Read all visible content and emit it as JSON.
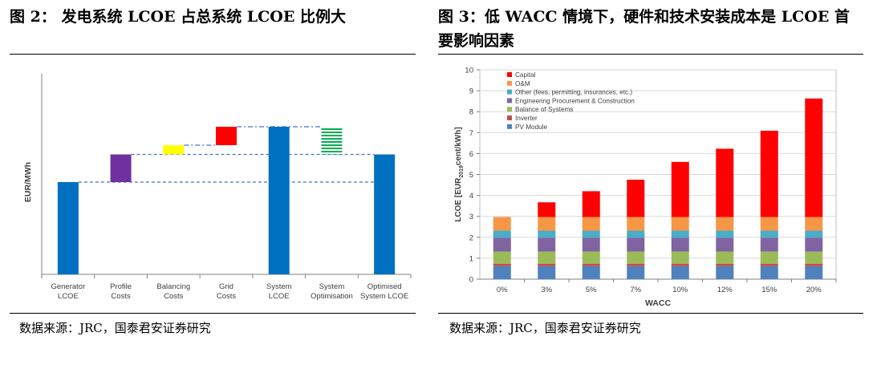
{
  "figures": [
    {
      "title": "图 2：  发电系统 LCOE 占总系统 LCOE 比例大",
      "source": "数据来源：JRC，国泰君安证券研究"
    },
    {
      "title": "图 3：低 WACC 情境下，硬件和技术安装成本是 LCOE 首要影响因素",
      "source": "数据来源：JRC，国泰君安证券研究"
    }
  ],
  "chart_data": [
    {
      "type": "bar",
      "subtype": "waterfall",
      "ylabel": "EUR/MWh",
      "categories": [
        "Generator\nLCOE",
        "Profile\nCosts",
        "Balancing\nCosts",
        "Grid\nCosts",
        "System\nLCOE",
        "System\nOptimisation",
        "Optimised\nSystem LCOE"
      ],
      "ylim": [
        0,
        100
      ],
      "bars": [
        {
          "category": "Generator LCOE",
          "start": 0,
          "end": 50,
          "color": "#0070c0",
          "fill": "solid"
        },
        {
          "category": "Profile Costs",
          "start": 50,
          "end": 65,
          "color": "#7030a0",
          "fill": "solid"
        },
        {
          "category": "Balancing Costs",
          "start": 65,
          "end": 70,
          "color": "#ffff00",
          "fill": "solid"
        },
        {
          "category": "Grid Costs",
          "start": 70,
          "end": 80,
          "color": "#ff0000",
          "fill": "solid"
        },
        {
          "category": "System LCOE",
          "start": 0,
          "end": 80,
          "color": "#0070c0",
          "fill": "solid"
        },
        {
          "category": "System Optimisation",
          "start": 65,
          "end": 80,
          "color": "#00b050",
          "fill": "striped"
        },
        {
          "category": "Optimised System LCOE",
          "start": 0,
          "end": 65,
          "color": "#0070c0",
          "fill": "solid"
        }
      ],
      "grid": false
    },
    {
      "type": "bar",
      "subtype": "stacked",
      "xlabel": "WACC",
      "ylabel": "LCOE [EUR2019cent/kWh]",
      "ylabel_main": "LCOE [EUR",
      "ylabel_sub": "2019",
      "ylabel_tail": "cent/kWh]",
      "categories": [
        "0%",
        "3%",
        "5%",
        "7%",
        "10%",
        "12%",
        "15%",
        "20%"
      ],
      "ylim": [
        0,
        10
      ],
      "yticks": [
        0,
        1,
        2,
        3,
        4,
        5,
        6,
        7,
        8,
        9,
        10
      ],
      "grid": true,
      "legend_position": "top-left",
      "series": [
        {
          "name": "PV Module",
          "color": "#4f81bd",
          "values": [
            0.62,
            0.62,
            0.62,
            0.62,
            0.62,
            0.62,
            0.62,
            0.62
          ]
        },
        {
          "name": "Inverter",
          "color": "#c0504d",
          "values": [
            0.12,
            0.12,
            0.12,
            0.12,
            0.12,
            0.12,
            0.12,
            0.12
          ]
        },
        {
          "name": "Balance of Systems",
          "color": "#9bbb59",
          "values": [
            0.58,
            0.58,
            0.58,
            0.58,
            0.58,
            0.58,
            0.58,
            0.58
          ]
        },
        {
          "name": "Engineering Procurement & Construction",
          "color": "#8064a2",
          "values": [
            0.66,
            0.66,
            0.66,
            0.66,
            0.66,
            0.66,
            0.66,
            0.66
          ]
        },
        {
          "name": "Other (fees, permitting, insurances, etc.)",
          "color": "#4bacc6",
          "values": [
            0.34,
            0.34,
            0.34,
            0.34,
            0.34,
            0.34,
            0.34,
            0.34
          ]
        },
        {
          "name": "O&M",
          "color": "#f79646",
          "values": [
            0.65,
            0.65,
            0.65,
            0.65,
            0.65,
            0.65,
            0.65,
            0.65
          ]
        },
        {
          "name": "Capital",
          "color": "#ff0000",
          "values": [
            0.0,
            0.7,
            1.23,
            1.78,
            2.63,
            3.26,
            4.12,
            5.66
          ]
        }
      ]
    }
  ]
}
